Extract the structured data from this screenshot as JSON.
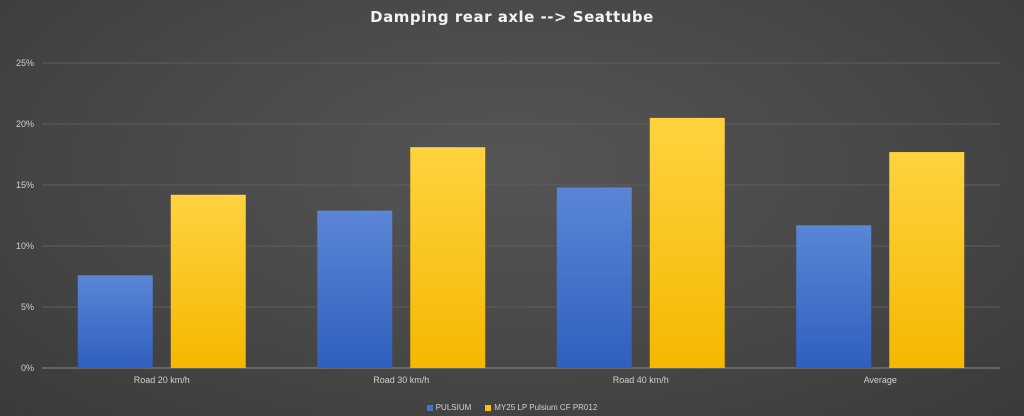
{
  "chart_data": {
    "type": "bar",
    "title": "Damping rear axle --> Seattube",
    "categories": [
      "Road 20 km/h",
      "Road 30 km/h",
      "Road 40 km/h",
      "Average"
    ],
    "series": [
      {
        "name": "PULSIUM",
        "values": [
          7.6,
          12.9,
          14.8,
          11.7
        ],
        "color": "#4472c4"
      },
      {
        "name": "MY25 LP Pulsium CF PR012",
        "values": [
          14.2,
          18.1,
          20.5,
          17.7
        ],
        "color": "#ffc000"
      }
    ],
    "yticks": [
      "0%",
      "5%",
      "10%",
      "15%",
      "20%",
      "25%"
    ],
    "ylim": [
      0,
      25
    ],
    "grid": true,
    "legend_position": "bottom"
  }
}
